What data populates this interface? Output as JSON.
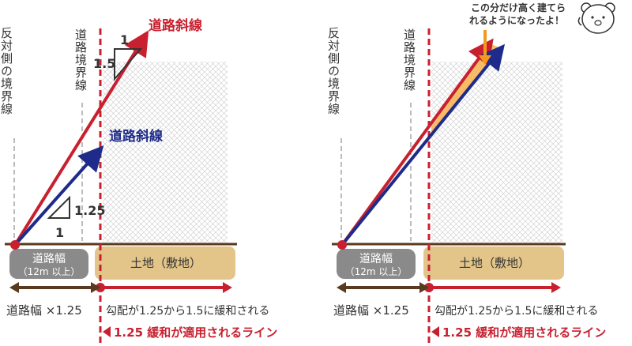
{
  "colors": {
    "red": "#c8202f",
    "navy": "#1f2b8a",
    "brown": "#5a3a1e",
    "land": "#e3c58a",
    "road": "#8a8a8a",
    "orange": "#f7b24d",
    "text": "#333333"
  },
  "left": {
    "opposite_boundary": "反対側の境界線",
    "road_boundary": "道路境界線",
    "red_line_label": "道路斜線",
    "blue_line_label": "道路斜線",
    "slope_red_top": "1",
    "slope_red_side": "1.5",
    "slope_blue_side": "1.25",
    "slope_blue_bottom": "1",
    "road_label_1": "道路幅",
    "road_label_2": "（12m 以上）",
    "land_label": "土地（敷地）",
    "distance_label": "道路幅 ×1.25",
    "relax_text": "勾配が1.25から1.5に緩和される",
    "apply_line": "1.25 緩和が適用されるライン"
  },
  "right": {
    "opposite_boundary": "反対側の境界線",
    "road_boundary": "道路境界線",
    "road_label_1": "道路幅",
    "road_label_2": "（12m 以上）",
    "land_label": "土地（敷地）",
    "distance_label": "道路幅 ×1.25",
    "relax_text": "勾配が1.25から1.5に緩和される",
    "apply_line": "1.25 緩和が適用されるライン",
    "speech_1": "この分だけ高く建てら",
    "speech_2": "れるようになったよ！",
    "mascot_icon": "bear-mascot-icon"
  }
}
